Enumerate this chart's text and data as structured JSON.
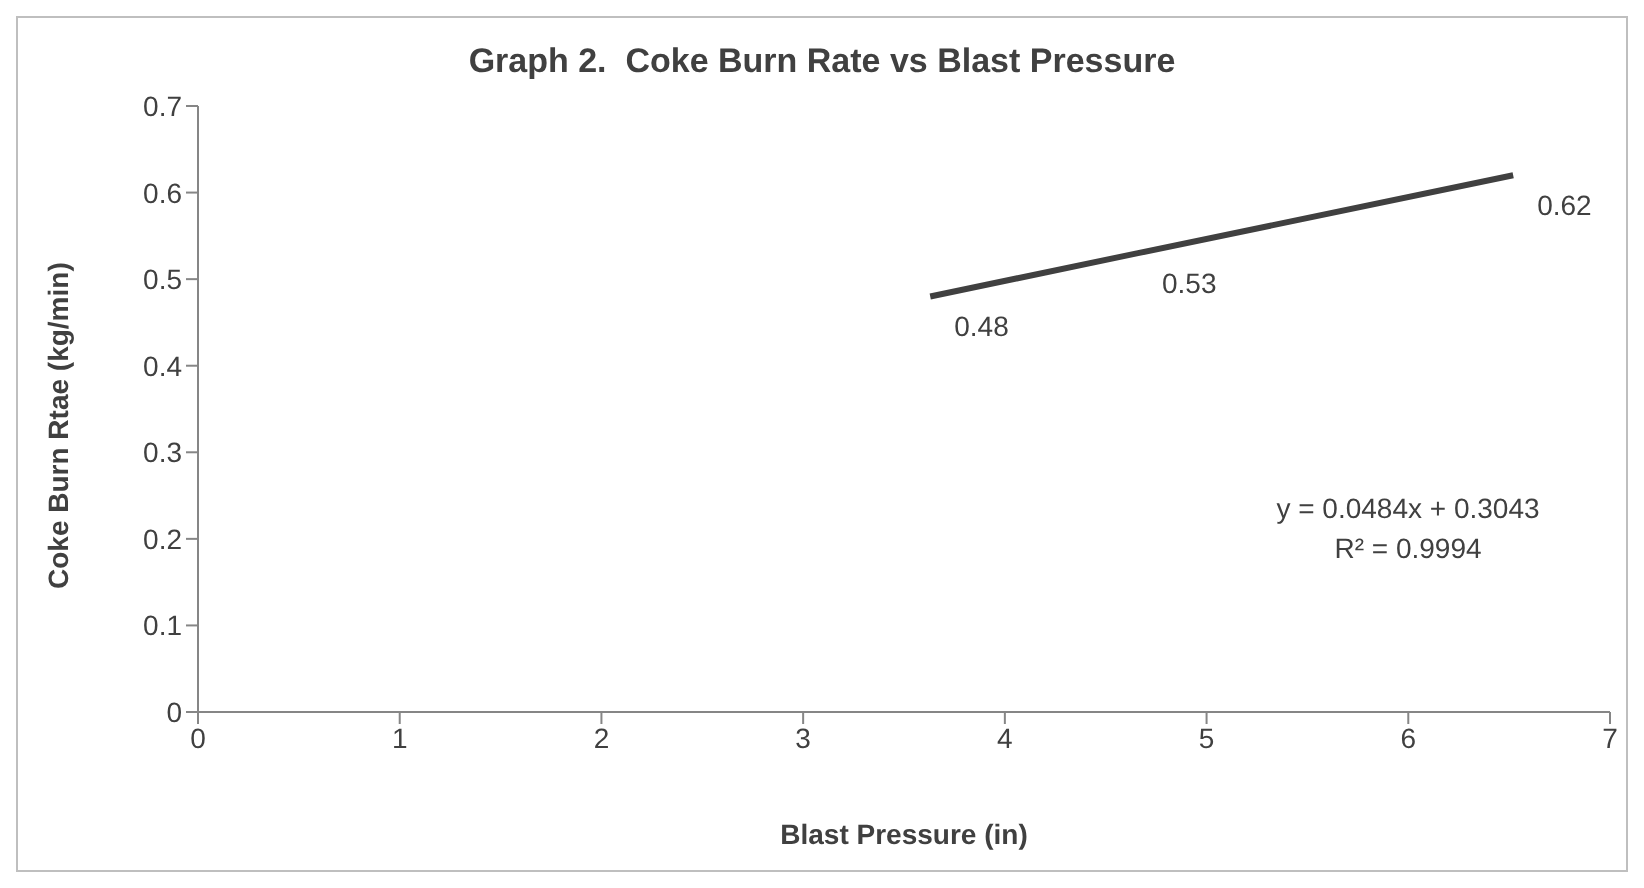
{
  "chart_data": {
    "type": "line",
    "title": "Graph 2.  Coke Burn Rate vs Blast Pressure",
    "xlabel": "Blast Pressure (in)",
    "ylabel": "Coke Burn Rtae (kg/min)",
    "x": [
      3.63,
      4.66,
      6.52
    ],
    "series": [
      {
        "color": "#404040",
        "values": [
          0.48,
          0.53,
          0.62
        ]
      }
    ],
    "xlim": [
      0,
      7
    ],
    "xticks": [
      0,
      1,
      2,
      3,
      4,
      5,
      6,
      7
    ],
    "ylim": [
      0,
      0.7
    ],
    "yticks": [
      0,
      0.1,
      0.2,
      0.3,
      0.4,
      0.5,
      0.6,
      0.7
    ],
    "data_labels": true,
    "grid": false,
    "legend": false,
    "annotations": [
      "y = 0.0484x + 0.3043",
      "R² = 0.9994"
    ]
  }
}
